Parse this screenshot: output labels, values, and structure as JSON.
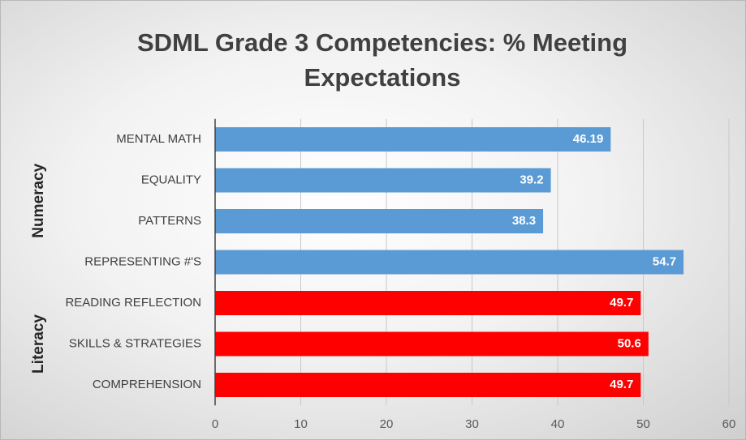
{
  "chart_data": {
    "type": "hbar",
    "title": "SDML Grade 3 Competencies: % Meeting Expectations",
    "categories": [
      "MENTAL MATH",
      "EQUALITY",
      "PATTERNS",
      "REPRESENTING #'S",
      "READING REFLECTION",
      "SKILLS & STRATEGIES",
      "COMPREHENSION"
    ],
    "series": [
      {
        "name": "Numeracy",
        "color": "#5b9bd5",
        "values": [
          46.19,
          39.2,
          38.3,
          54.7,
          null,
          null,
          null
        ]
      },
      {
        "name": "Literacy",
        "color": "#ff0000",
        "values": [
          null,
          null,
          null,
          null,
          49.7,
          50.6,
          49.7
        ]
      }
    ],
    "xlim": [
      0,
      60
    ],
    "xticks": [
      0,
      10,
      20,
      30,
      40,
      50,
      60
    ],
    "grid": true
  }
}
